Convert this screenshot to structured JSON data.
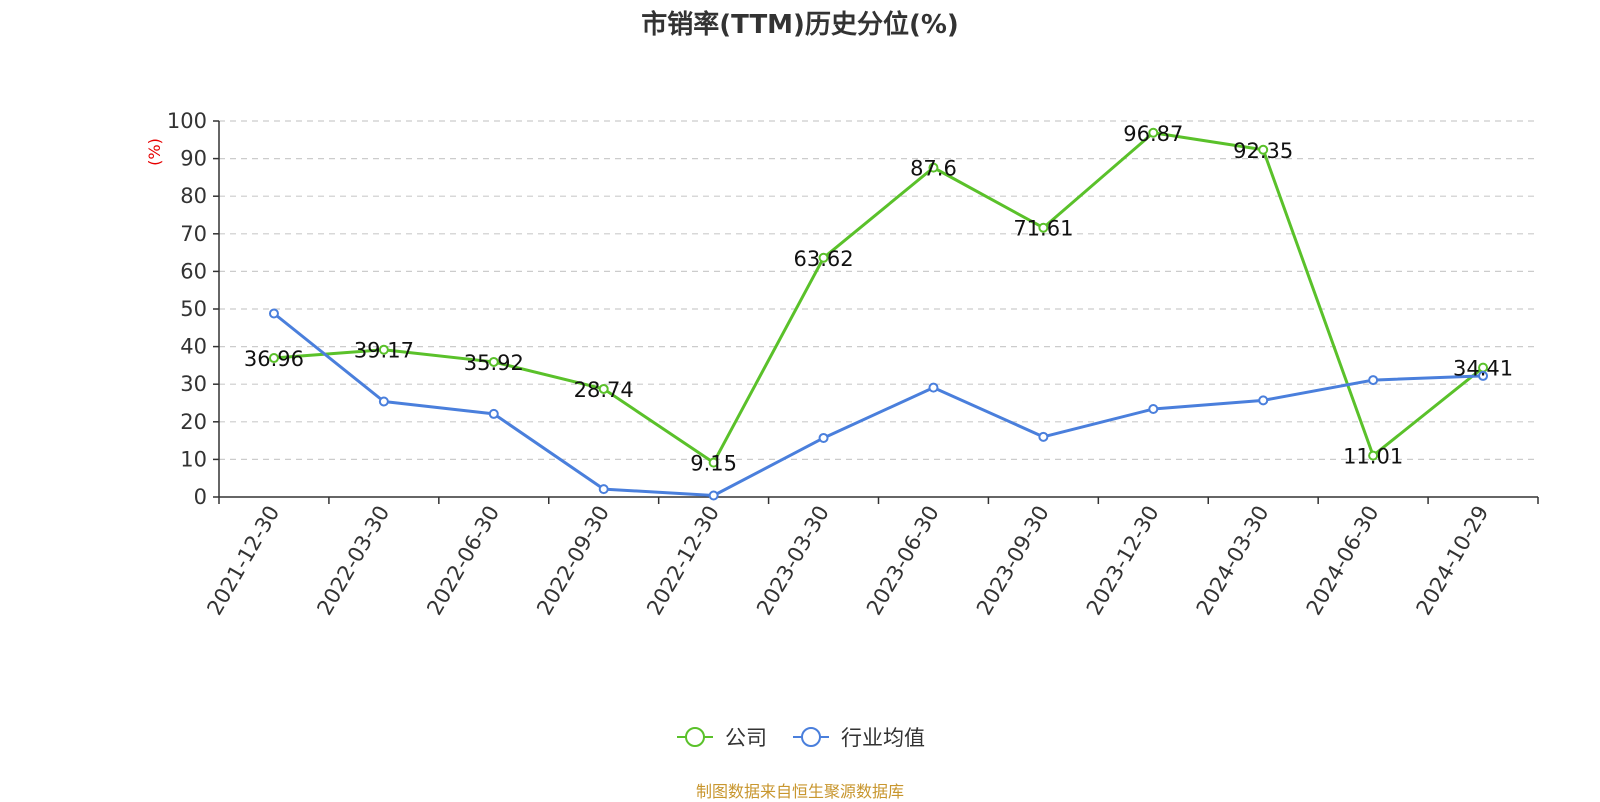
{
  "chart_data": {
    "type": "line",
    "title": "市销率(TTM)历史分位(%)",
    "ylabel": "(%)",
    "ylim": [
      0,
      100
    ],
    "yticks": [
      0,
      10,
      20,
      30,
      40,
      50,
      60,
      70,
      80,
      90,
      100
    ],
    "grid": true,
    "legend_position": "bottom",
    "categories": [
      "2021-12-30",
      "2022-03-30",
      "2022-06-30",
      "2022-09-30",
      "2022-12-30",
      "2023-03-30",
      "2023-06-30",
      "2023-09-30",
      "2023-12-30",
      "2024-03-30",
      "2024-06-30",
      "2024-10-29"
    ],
    "series": [
      {
        "name": "公司",
        "color": "#5ac12a",
        "values": [
          36.96,
          39.17,
          35.92,
          28.74,
          9.15,
          63.62,
          87.6,
          71.61,
          96.87,
          92.35,
          11.01,
          34.41
        ],
        "labels": [
          "36.96",
          "39.17",
          "35.92",
          "28.74",
          "9.15",
          "63.62",
          "87.6",
          "71.61",
          "96.87",
          "92.35",
          "11.01",
          "34.41"
        ]
      },
      {
        "name": "行业均值",
        "color": "#4a7fdc",
        "values": [
          48.8,
          25.4,
          22.1,
          2.1,
          0.4,
          15.7,
          29.1,
          16.0,
          23.4,
          25.7,
          31.1,
          32.2
        ]
      }
    ]
  },
  "footer": {
    "source": "制图数据来自恒生聚源数据库"
  }
}
